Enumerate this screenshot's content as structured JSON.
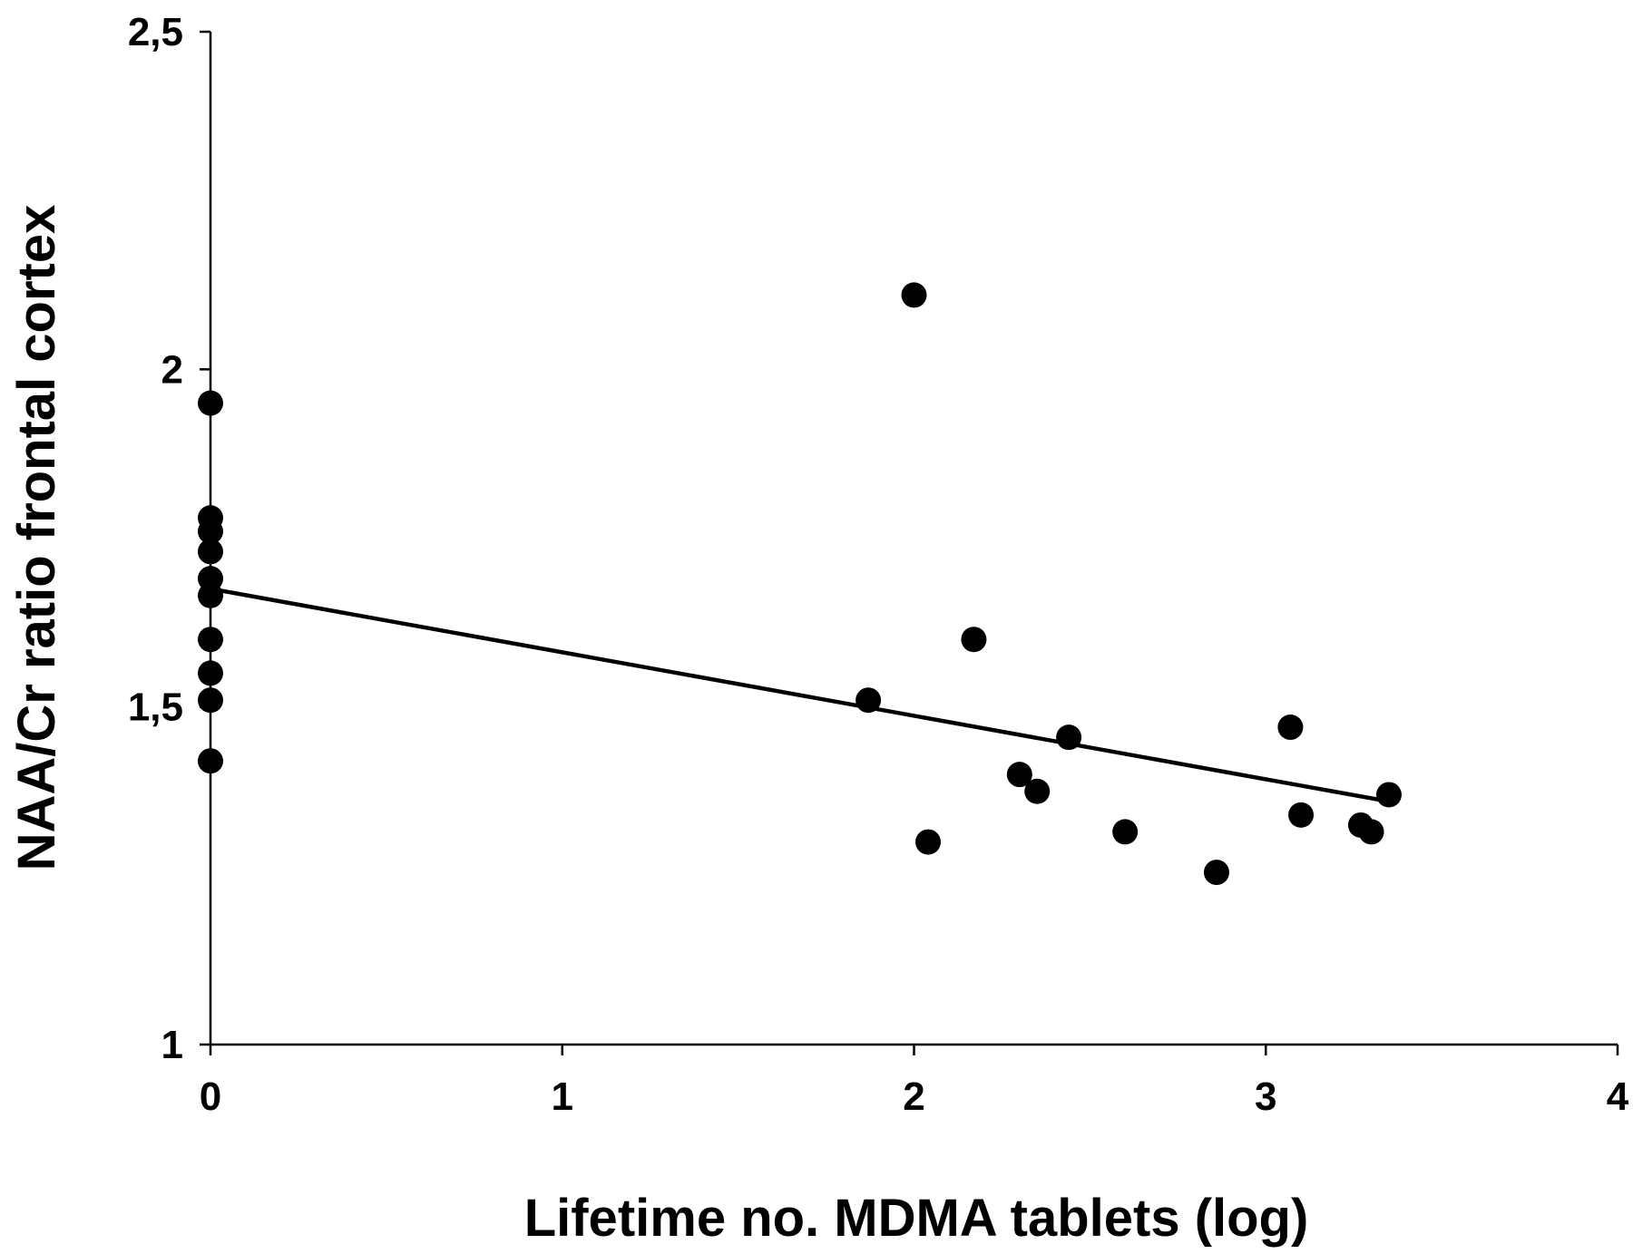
{
  "chart_data": {
    "type": "scatter",
    "title": "",
    "xlabel": "Lifetime no. MDMA tablets (log)",
    "ylabel": "NAA/Cr ratio frontal cortex",
    "xlim": [
      0,
      4
    ],
    "ylim": [
      1,
      2.5
    ],
    "x_ticks": [
      {
        "value": 0,
        "label": "0"
      },
      {
        "value": 1,
        "label": "1"
      },
      {
        "value": 2,
        "label": "2"
      },
      {
        "value": 3,
        "label": "3"
      },
      {
        "value": 4,
        "label": "4"
      }
    ],
    "y_ticks": [
      {
        "value": 1,
        "label": "1"
      },
      {
        "value": 1.5,
        "label": "1,5"
      },
      {
        "value": 2,
        "label": "2"
      },
      {
        "value": 2.5,
        "label": "2,5"
      }
    ],
    "grid": false,
    "legend": "none",
    "marker_color": "#000000",
    "points": [
      {
        "x": 0,
        "y": 1.95
      },
      {
        "x": 0,
        "y": 1.78
      },
      {
        "x": 0,
        "y": 1.76
      },
      {
        "x": 0,
        "y": 1.73
      },
      {
        "x": 0,
        "y": 1.69
      },
      {
        "x": 0,
        "y": 1.665
      },
      {
        "x": 0,
        "y": 1.6
      },
      {
        "x": 0,
        "y": 1.55
      },
      {
        "x": 0,
        "y": 1.51
      },
      {
        "x": 0,
        "y": 1.42
      },
      {
        "x": 1.87,
        "y": 1.51
      },
      {
        "x": 2.0,
        "y": 2.11
      },
      {
        "x": 2.04,
        "y": 1.3
      },
      {
        "x": 2.17,
        "y": 1.6
      },
      {
        "x": 2.3,
        "y": 1.4
      },
      {
        "x": 2.35,
        "y": 1.375
      },
      {
        "x": 2.44,
        "y": 1.455
      },
      {
        "x": 2.6,
        "y": 1.315
      },
      {
        "x": 2.86,
        "y": 1.255
      },
      {
        "x": 3.07,
        "y": 1.47
      },
      {
        "x": 3.1,
        "y": 1.34
      },
      {
        "x": 3.27,
        "y": 1.325
      },
      {
        "x": 3.3,
        "y": 1.315
      },
      {
        "x": 3.35,
        "y": 1.37
      }
    ],
    "regression_line": {
      "x": [
        0,
        3.35
      ],
      "y": [
        1.675,
        1.36
      ]
    }
  }
}
